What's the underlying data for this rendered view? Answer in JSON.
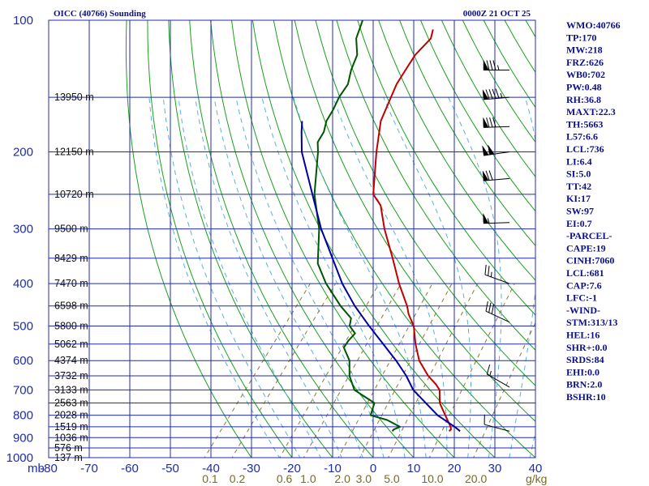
{
  "header": {
    "station": "OICC (40766) Sounding",
    "time": "0000Z 21 OCT 25"
  },
  "colors": {
    "grid": "#1f2bb0",
    "dry_adiabat": "#1aa01a",
    "moist_adiabat": "#5ab0e0",
    "mixing_ratio": "#8a7a30",
    "temperature": "#c00000",
    "dewpoint": "#005500",
    "parcel": "#0000a0",
    "wind_barb": "#000000"
  },
  "chart_data": {
    "type": "skew-t",
    "pressure_axis": {
      "log_scale": true,
      "range": [
        1000,
        100
      ],
      "ticks": [
        "100",
        "200",
        "300",
        "400",
        "500",
        "600",
        "700",
        "800",
        "900",
        "1000"
      ],
      "tick_values": [
        100,
        200,
        300,
        400,
        500,
        600,
        700,
        800,
        900,
        1000
      ]
    },
    "temperature_axis": {
      "unit_label": "mb",
      "range": [
        -80,
        40
      ],
      "ticks": [
        "-80",
        "-70",
        "-60",
        "-50",
        "-40",
        "-30",
        "-20",
        "-10",
        "0",
        "10",
        "20",
        "30",
        "40"
      ],
      "tick_values": [
        -80,
        -70,
        -60,
        -50,
        -40,
        -30,
        -20,
        -10,
        0,
        10,
        20,
        30,
        40
      ]
    },
    "mixing_ratio_axis": {
      "unit_label": "g/kg",
      "ticks": [
        "0.1",
        "0.2",
        "0.6",
        "1.0",
        "2.0",
        "3.0",
        "5.0",
        "10.0",
        "20.0"
      ],
      "tick_values": [
        0.1,
        0.2,
        0.6,
        1.0,
        2.0,
        3.0,
        5.0,
        10.0,
        20.0
      ]
    },
    "height_labels": [
      {
        "p": 150,
        "label": "13950 m"
      },
      {
        "p": 200,
        "label": "12150 m"
      },
      {
        "p": 250,
        "label": "10720 m"
      },
      {
        "p": 300,
        "label": "9500 m"
      },
      {
        "p": 350,
        "label": "8429 m"
      },
      {
        "p": 400,
        "label": "7470 m"
      },
      {
        "p": 450,
        "label": "6598 m"
      },
      {
        "p": 500,
        "label": "5800 m"
      },
      {
        "p": 550,
        "label": "5062 m"
      },
      {
        "p": 600,
        "label": "4374 m"
      },
      {
        "p": 650,
        "label": "3732 m"
      },
      {
        "p": 700,
        "label": "3133 m"
      },
      {
        "p": 750,
        "label": "2563 m"
      },
      {
        "p": 800,
        "label": "2028 m"
      },
      {
        "p": 850,
        "label": "1519 m"
      },
      {
        "p": 900,
        "label": "1036 m"
      },
      {
        "p": 950,
        "label": "576 m"
      },
      {
        "p": 1000,
        "label": "137 m"
      }
    ],
    "series": [
      {
        "key": "temperature",
        "points": [
          [
            870,
            13.5
          ],
          [
            862,
            13.6
          ],
          [
            850,
            13.0
          ],
          [
            800,
            9.4
          ],
          [
            750,
            5.6
          ],
          [
            700,
            3.0
          ],
          [
            680,
            1.0
          ],
          [
            650,
            -2.6
          ],
          [
            600,
            -7.8
          ],
          [
            550,
            -12.0
          ],
          [
            500,
            -16.0
          ],
          [
            470,
            -19.6
          ],
          [
            450,
            -21.6
          ],
          [
            400,
            -28.0
          ],
          [
            350,
            -34.6
          ],
          [
            300,
            -42.4
          ],
          [
            265,
            -48.0
          ],
          [
            250,
            -52.0
          ],
          [
            200,
            -59.6
          ],
          [
            170,
            -64.6
          ],
          [
            150,
            -66.8
          ],
          [
            140,
            -68.0
          ],
          [
            130,
            -68.6
          ],
          [
            120,
            -69.2
          ],
          [
            110,
            -68.6
          ],
          [
            105,
            -69.8
          ]
        ]
      },
      {
        "key": "dewpoint",
        "points": [
          [
            870,
            -0.5
          ],
          [
            862,
            -0.5
          ],
          [
            850,
            0.5
          ],
          [
            820,
            -4.0
          ],
          [
            800,
            -9.0
          ],
          [
            750,
            -10.5
          ],
          [
            700,
            -18.0
          ],
          [
            650,
            -22.0
          ],
          [
            600,
            -25.0
          ],
          [
            560,
            -29.0
          ],
          [
            540,
            -29.2
          ],
          [
            520,
            -29.0
          ],
          [
            500,
            -31.8
          ],
          [
            480,
            -33.0
          ],
          [
            450,
            -38.0
          ],
          [
            400,
            -46.0
          ],
          [
            360,
            -52.0
          ],
          [
            300,
            -58.5
          ],
          [
            250,
            -66.5
          ],
          [
            200,
            -74.0
          ],
          [
            190,
            -76.0
          ],
          [
            180,
            -76.5
          ],
          [
            170,
            -78.0
          ],
          [
            160,
            -78.6
          ],
          [
            150,
            -79.6
          ],
          [
            140,
            -80.0
          ],
          [
            130,
            -82.0
          ],
          [
            120,
            -83.5
          ],
          [
            110,
            -87.0
          ],
          [
            100,
            -89.0
          ]
        ]
      },
      {
        "key": "parcel",
        "points": [
          [
            870,
            16.2
          ],
          [
            850,
            14.0
          ],
          [
            800,
            7.5
          ],
          [
            700,
            -3.5
          ],
          [
            650,
            -8.0
          ],
          [
            600,
            -13.5
          ],
          [
            500,
            -27.0
          ],
          [
            450,
            -34.5
          ],
          [
            400,
            -42.0
          ],
          [
            300,
            -58.0
          ],
          [
            250,
            -67.0
          ],
          [
            200,
            -78.0
          ],
          [
            180,
            -82.0
          ],
          [
            170,
            -84.0
          ]
        ]
      }
    ],
    "wind_barbs": [
      {
        "p": 130,
        "dir": 270,
        "kt": 85
      },
      {
        "p": 150,
        "dir": 265,
        "kt": 95
      },
      {
        "p": 175,
        "dir": 268,
        "kt": 80
      },
      {
        "p": 200,
        "dir": 262,
        "kt": 100
      },
      {
        "p": 230,
        "dir": 265,
        "kt": 70
      },
      {
        "p": 290,
        "dir": 268,
        "kt": 55
      },
      {
        "p": 400,
        "dir": 290,
        "kt": 25
      },
      {
        "p": 490,
        "dir": 295,
        "kt": 30
      },
      {
        "p": 690,
        "dir": 300,
        "kt": 15
      },
      {
        "p": 870,
        "dir": 285,
        "kt": 10
      }
    ]
  },
  "indices": [
    "WMO:40766",
    "TP:170",
    "MW:218",
    "FRZ:626",
    "WB0:702",
    "PW:0.48",
    "RH:36.8",
    "MAXT:22.3",
    "TH:5663",
    "L57:6.6",
    "LCL:736",
    "LI:6.4",
    "SI:5.0",
    "TT:42",
    "KI:17",
    "SW:97",
    "EI:0.7",
    "-PARCEL-",
    "CAPE:19",
    "CINH:7060",
    "LCL:681",
    "CAP:7.6",
    "LFC:-1",
    "-WIND-",
    "STM:313/13",
    "HEL:16",
    "SHR+:0.0",
    "SRDS:84",
    "EHI:0.0",
    "BRN:2.0",
    "BSHR:10"
  ]
}
